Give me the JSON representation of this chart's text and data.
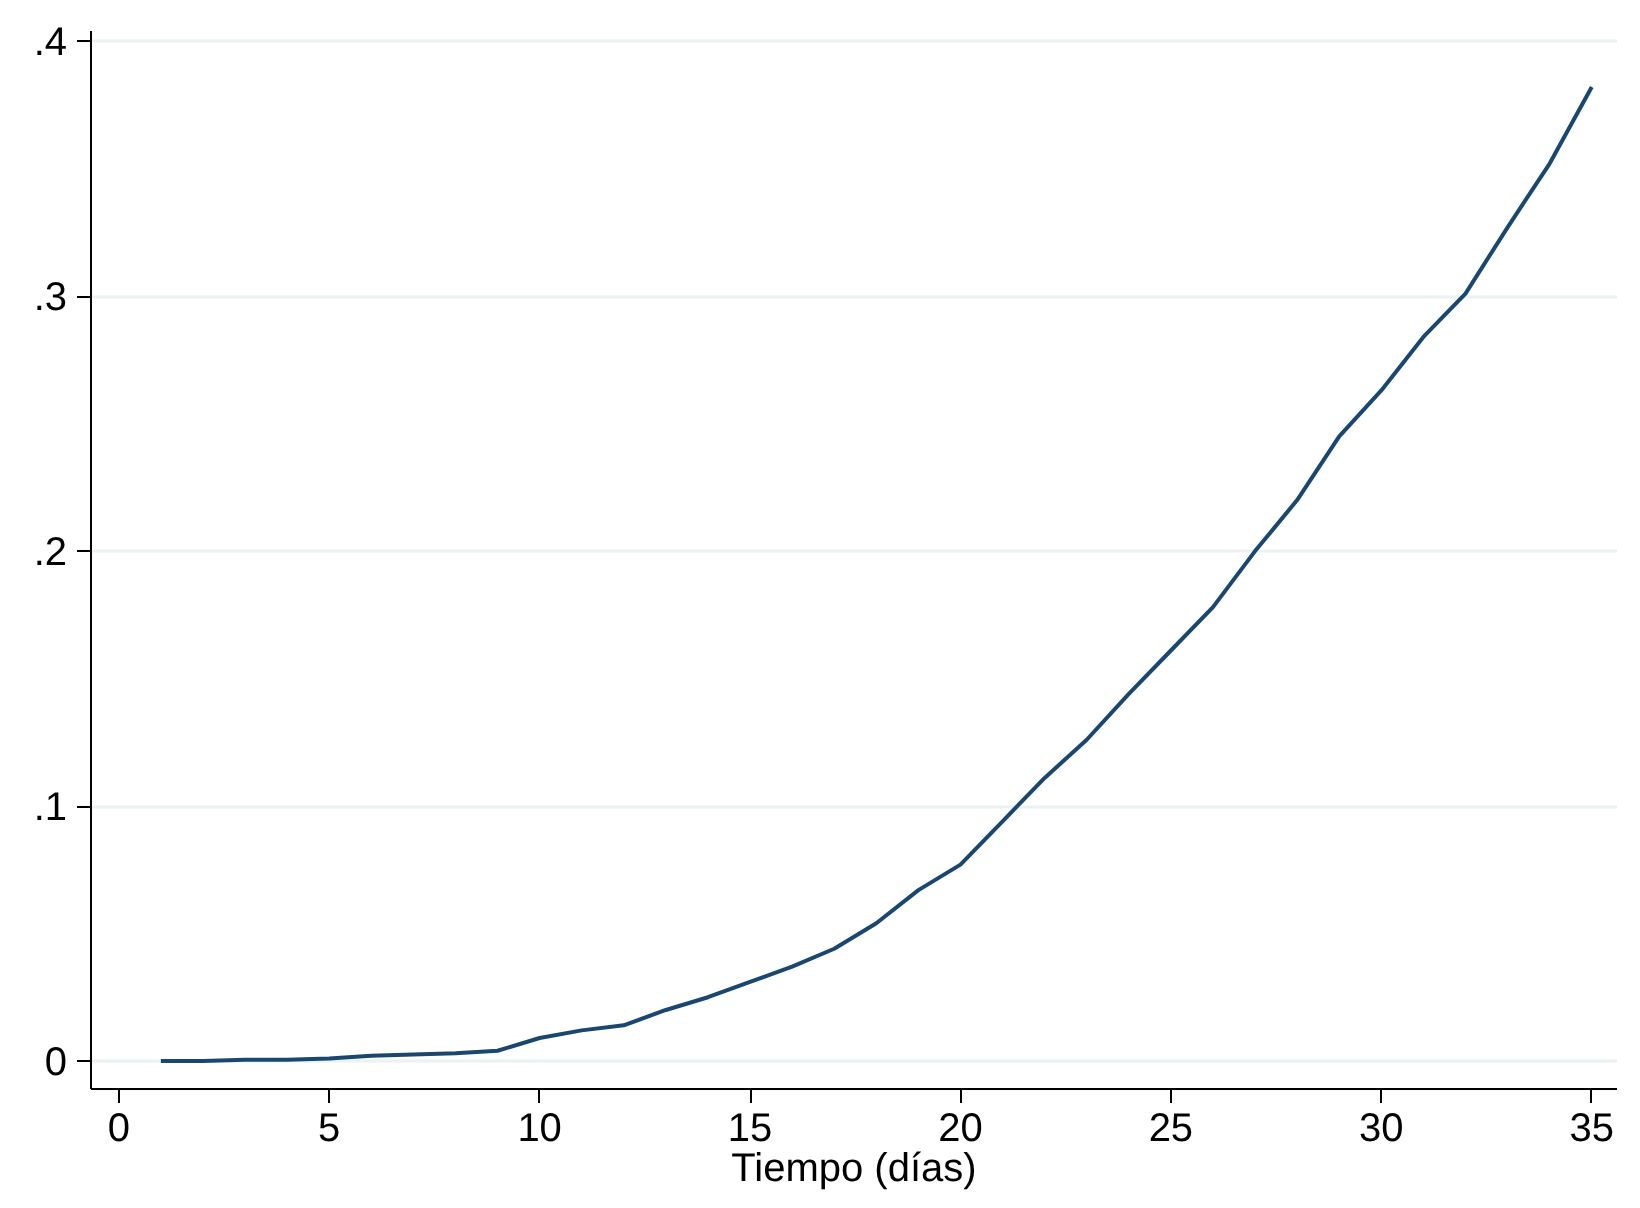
{
  "chart_data": {
    "type": "line",
    "xlabel": "Tiempo (días)",
    "x": [
      1,
      2,
      3,
      4,
      5,
      6,
      7,
      8,
      9,
      10,
      11,
      12,
      13,
      14,
      15,
      16,
      17,
      18,
      19,
      20,
      21,
      22,
      23,
      24,
      25,
      26,
      27,
      28,
      29,
      30,
      31,
      32,
      33,
      34,
      35
    ],
    "series": [
      {
        "color": "#1a476f",
        "values": [
          0,
          0,
          0.0005,
          0.0005,
          0.001,
          0.002,
          0.0025,
          0.003,
          0.004,
          0.009,
          0.012,
          0.014,
          0.02,
          0.025,
          0.031,
          0.037,
          0.044,
          0.054,
          0.067,
          0.077,
          0.094,
          0.111,
          0.126,
          0.144,
          0.161,
          0.178,
          0.2,
          0.22,
          0.245,
          0.263,
          0.284,
          0.301,
          0.327,
          0.352,
          0.382
        ]
      }
    ],
    "xlim": [
      -0.66,
      35.6
    ],
    "ylim": [
      -0.011,
      0.404
    ],
    "xticks": [
      0,
      5,
      10,
      15,
      20,
      25,
      30,
      35
    ],
    "yticks": [
      {
        "value": 0,
        "label": "0"
      },
      {
        "value": 0.1,
        "label": ".1"
      },
      {
        "value": 0.2,
        "label": ".2"
      },
      {
        "value": 0.3,
        "label": ".3"
      },
      {
        "value": 0.4,
        "label": ".4"
      }
    ],
    "grid": "y",
    "marker": "none",
    "line_style": "solid"
  }
}
